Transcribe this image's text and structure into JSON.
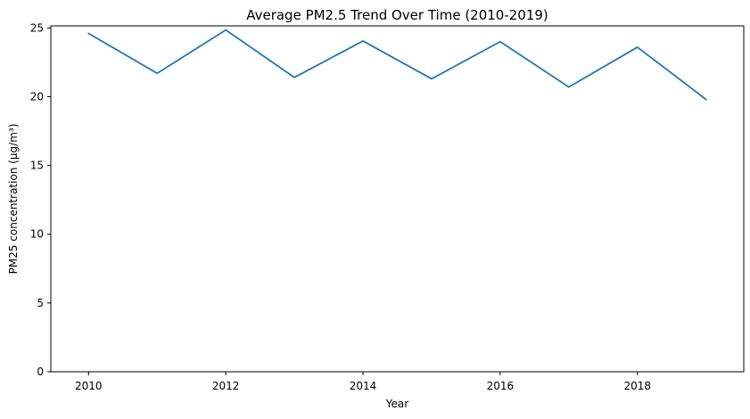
{
  "chart_data": {
    "type": "line",
    "title": "Average PM2.5 Trend Over Time (2010-2019)",
    "xlabel": "Year",
    "ylabel": "PM25 concentration (µg/m³)",
    "x": [
      2010,
      2011,
      2012,
      2013,
      2014,
      2015,
      2016,
      2017,
      2018,
      2019
    ],
    "series": [
      {
        "values": [
          24.6,
          21.7,
          24.85,
          21.4,
          24.05,
          21.3,
          24.0,
          20.7,
          23.6,
          19.8
        ]
      }
    ],
    "xlim": [
      2009.45,
      2019.55
    ],
    "ylim": [
      0,
      25.15
    ],
    "x_ticks": [
      2010,
      2012,
      2014,
      2016,
      2018
    ],
    "y_ticks": [
      0,
      5,
      10,
      15,
      20,
      25
    ],
    "grid": false,
    "line_color": "#1f77b4"
  }
}
